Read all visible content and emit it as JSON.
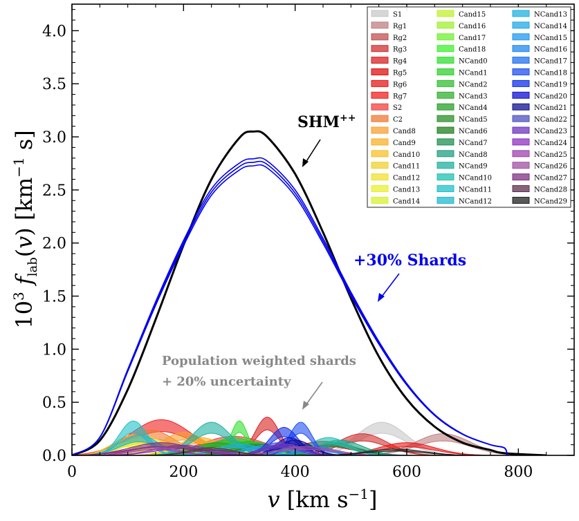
{
  "chart_data": {
    "type": "area",
    "xlabel": "v [km s⁻¹]",
    "ylabel": "10³ f_lab(v) [km⁻¹ s]",
    "xlim": [
      0,
      900
    ],
    "ylim": [
      0,
      4.25
    ],
    "xticks": [
      0,
      200,
      400,
      600,
      800
    ],
    "yticks": [
      0.0,
      0.5,
      1.0,
      1.5,
      2.0,
      2.5,
      3.0,
      3.5,
      4.0
    ],
    "ytick_labels": [
      "0.0",
      "0.5",
      "1.0",
      "1.5",
      "2.0",
      "2.5",
      "3.0",
      "3.5",
      "4.0"
    ],
    "legend_position": "top-right",
    "annotations": [
      {
        "id": "shm",
        "text": "SHM",
        "sup": "++",
        "color": "#000000"
      },
      {
        "id": "shards",
        "text": "+30% Shards",
        "color": "#0000ee"
      },
      {
        "id": "pop1",
        "text": "Population weighted shards",
        "color": "#888888"
      },
      {
        "id": "pop2",
        "text": "+ 20% uncertainty",
        "color": "#888888"
      }
    ],
    "lines": [
      {
        "name": "SHM++",
        "color": "#000000",
        "x": [
          0,
          50,
          100,
          150,
          200,
          250,
          300,
          325,
          350,
          400,
          450,
          500,
          550,
          600,
          650,
          700,
          750,
          775,
          850
        ],
        "y": [
          0,
          0.14,
          0.62,
          1.28,
          1.98,
          2.6,
          2.99,
          3.05,
          3.0,
          2.65,
          2.1,
          1.48,
          0.93,
          0.53,
          0.27,
          0.12,
          0.05,
          0.02,
          0
        ]
      },
      {
        "name": "+30% Shards",
        "color": "#0000ee",
        "x": [
          0,
          50,
          100,
          150,
          200,
          250,
          300,
          325,
          350,
          400,
          450,
          500,
          550,
          600,
          650,
          700,
          750,
          775,
          780
        ],
        "y": [
          0,
          0.17,
          0.8,
          1.43,
          2.0,
          2.48,
          2.72,
          2.76,
          2.74,
          2.47,
          2.02,
          1.52,
          1.06,
          0.67,
          0.38,
          0.2,
          0.1,
          0.07,
          0
        ]
      }
    ],
    "series": [
      {
        "name": "S1",
        "color": "#c8c8c8",
        "center": 555,
        "width": 45,
        "height": 0.26
      },
      {
        "name": "Rg1",
        "color": "#c08080",
        "center": 665,
        "width": 50,
        "height": 0.17
      },
      {
        "name": "Rg2",
        "color": "#c05050",
        "center": 180,
        "width": 70,
        "height": 0.08
      },
      {
        "name": "Rg3",
        "color": "#d03030",
        "center": 520,
        "width": 45,
        "height": 0.17
      },
      {
        "name": "Rg4",
        "color": "#d82020",
        "center": 350,
        "width": 22,
        "height": 0.3
      },
      {
        "name": "Rg5",
        "color": "#e01010",
        "center": 450,
        "width": 50,
        "height": 0.11
      },
      {
        "name": "Rg6",
        "color": "#e81818",
        "center": 600,
        "width": 50,
        "height": 0.1
      },
      {
        "name": "Rg7",
        "color": "#f02020",
        "center": 160,
        "width": 55,
        "height": 0.28
      },
      {
        "name": "S2",
        "color": "#f04040",
        "center": 290,
        "width": 60,
        "height": 0.15
      },
      {
        "name": "C2",
        "color": "#f07830",
        "center": 140,
        "width": 45,
        "height": 0.2
      },
      {
        "name": "Cand8",
        "color": "#f8a030",
        "center": 200,
        "width": 40,
        "height": 0.18
      },
      {
        "name": "Cand9",
        "color": "#f8b028",
        "center": 230,
        "width": 40,
        "height": 0.14
      },
      {
        "name": "Cand10",
        "color": "#f8c028",
        "center": 110,
        "width": 35,
        "height": 0.16
      },
      {
        "name": "Cand11",
        "color": "#f0d030",
        "center": 130,
        "width": 40,
        "height": 0.15
      },
      {
        "name": "Cand12",
        "color": "#f0e030",
        "center": 120,
        "width": 35,
        "height": 0.13
      },
      {
        "name": "Cand13",
        "color": "#e8f030",
        "center": 100,
        "width": 30,
        "height": 0.1
      },
      {
        "name": "Cand14",
        "color": "#d8f030",
        "center": 180,
        "width": 50,
        "height": 0.09
      },
      {
        "name": "Cand15",
        "color": "#c0f030",
        "center": 250,
        "width": 40,
        "height": 0.08
      },
      {
        "name": "Cand16",
        "color": "#a0f030",
        "center": 230,
        "width": 40,
        "height": 0.07
      },
      {
        "name": "Cand17",
        "color": "#70f030",
        "center": 260,
        "width": 35,
        "height": 0.07
      },
      {
        "name": "Cand18",
        "color": "#40f030",
        "center": 310,
        "width": 35,
        "height": 0.12
      },
      {
        "name": "NCand0",
        "color": "#30e030",
        "center": 300,
        "width": 15,
        "height": 0.27
      },
      {
        "name": "NCand1",
        "color": "#30d030",
        "center": 290,
        "width": 40,
        "height": 0.14
      },
      {
        "name": "NCand2",
        "color": "#30c030",
        "center": 280,
        "width": 45,
        "height": 0.12
      },
      {
        "name": "NCand3",
        "color": "#30b030",
        "center": 320,
        "width": 40,
        "height": 0.11
      },
      {
        "name": "NCand4",
        "color": "#28a028",
        "center": 260,
        "width": 45,
        "height": 0.1
      },
      {
        "name": "NCand5",
        "color": "#289028",
        "center": 330,
        "width": 40,
        "height": 0.09
      },
      {
        "name": "NCand6",
        "color": "#208020",
        "center": 340,
        "width": 40,
        "height": 0.08
      },
      {
        "name": "NCand7",
        "color": "#209050",
        "center": 470,
        "width": 40,
        "height": 0.1
      },
      {
        "name": "NCand8",
        "color": "#20a080",
        "center": 480,
        "width": 40,
        "height": 0.12
      },
      {
        "name": "NCand9",
        "color": "#20b0a0",
        "center": 250,
        "width": 35,
        "height": 0.26
      },
      {
        "name": "NCand10",
        "color": "#20c0b0",
        "center": 460,
        "width": 35,
        "height": 0.14
      },
      {
        "name": "NCand11",
        "color": "#20c0c8",
        "center": 110,
        "width": 25,
        "height": 0.27
      },
      {
        "name": "NCand12",
        "color": "#20b8d0",
        "center": 120,
        "width": 35,
        "height": 0.16
      },
      {
        "name": "NCand13",
        "color": "#20b0e0",
        "center": 300,
        "width": 40,
        "height": 0.09
      },
      {
        "name": "NCand14",
        "color": "#20a8e8",
        "center": 350,
        "width": 40,
        "height": 0.08
      },
      {
        "name": "NCand15",
        "color": "#2098f0",
        "center": 420,
        "width": 35,
        "height": 0.08
      },
      {
        "name": "NCand16",
        "color": "#2088f0",
        "center": 440,
        "width": 30,
        "height": 0.07
      },
      {
        "name": "NCand17",
        "color": "#2070f0",
        "center": 390,
        "width": 30,
        "height": 0.08
      },
      {
        "name": "NCand18",
        "color": "#2050f0",
        "center": 410,
        "width": 20,
        "height": 0.26
      },
      {
        "name": "NCand19",
        "color": "#1030e8",
        "center": 380,
        "width": 25,
        "height": 0.22
      },
      {
        "name": "NCand20",
        "color": "#1010d0",
        "center": 390,
        "width": 25,
        "height": 0.14
      },
      {
        "name": "NCand21",
        "color": "#101090",
        "center": 400,
        "width": 30,
        "height": 0.12
      },
      {
        "name": "NCand22",
        "color": "#5050c0",
        "center": 370,
        "width": 30,
        "height": 0.1
      },
      {
        "name": "NCand23",
        "color": "#7030c0",
        "center": 380,
        "width": 35,
        "height": 0.09
      },
      {
        "name": "NCand24",
        "color": "#9030c0",
        "center": 200,
        "width": 50,
        "height": 0.08
      },
      {
        "name": "NCand25",
        "color": "#a040b0",
        "center": 150,
        "width": 40,
        "height": 0.07
      },
      {
        "name": "NCand26",
        "color": "#a050a0",
        "center": 420,
        "width": 50,
        "height": 0.07
      },
      {
        "name": "NCand27",
        "color": "#803080",
        "center": 160,
        "width": 55,
        "height": 0.1
      },
      {
        "name": "NCand28",
        "color": "#603050",
        "center": 250,
        "width": 40,
        "height": 0.06
      },
      {
        "name": "NCand29",
        "color": "#202020",
        "center": 580,
        "width": 50,
        "height": 0.05
      }
    ]
  }
}
